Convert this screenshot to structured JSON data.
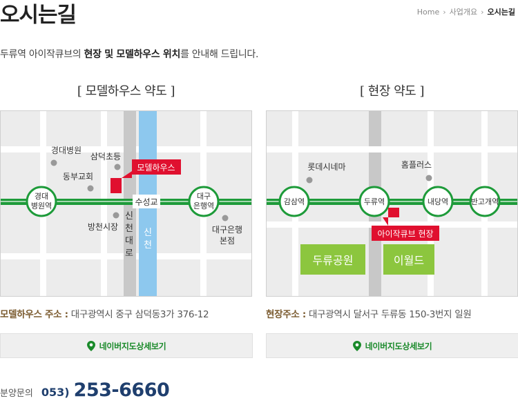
{
  "page": {
    "title": "오시는길",
    "breadcrumb": [
      "Home",
      "사업개요",
      "오시는길"
    ],
    "intro_pre": "두류역 아이작큐브의 ",
    "intro_bold": "현장 및 모델하우스 위치",
    "intro_post": "를 안내해 드립니다."
  },
  "left_map": {
    "title": "[ 모델하우스 약도 ]",
    "labels": {
      "hospital": "경대병원",
      "school": "삼덕초등",
      "church": "동부교회",
      "modelhouse": "모델하우스",
      "station_left_1": "경대",
      "station_left_2": "병원역",
      "bridge": "수성교",
      "station_right_1": "대구",
      "station_right_2": "은행역",
      "market": "방천시장",
      "road_1": "신",
      "road_2": "천",
      "road_3": "대",
      "road_4": "로",
      "stream_1": "신",
      "stream_2": "천",
      "bank_1": "대구은행",
      "bank_2": "본점"
    },
    "address_label": "모델하우스 주소 :",
    "address": " 대구광역시 중구 삼덕동3가 376-12",
    "button": "네이버지도상세보기"
  },
  "right_map": {
    "title": "[ 현장 약도 ]",
    "labels": {
      "cinema": "롯데시네마",
      "homeplus": "홈플러스",
      "station_1": "감삼역",
      "station_2": "두류역",
      "station_3": "내당역",
      "station_4": "반고개역",
      "site": "아이작큐브 현장",
      "park": "두류공원",
      "eworld": "이월드"
    },
    "address_label": "현장주소 :",
    "address": " 대구광역시 달서구 두류동 150-3번지 일원",
    "button": "네이버지도상세보기"
  },
  "contact": {
    "label": "분양문의",
    "area_code": "053)",
    "number": "253-6660"
  },
  "colors": {
    "subway_line": "#1e9b3a",
    "marker_red": "#e0102f",
    "stream_blue": "#8dc8ee",
    "park_green": "#8cc63e",
    "phone_blue": "#1f3f6e"
  }
}
